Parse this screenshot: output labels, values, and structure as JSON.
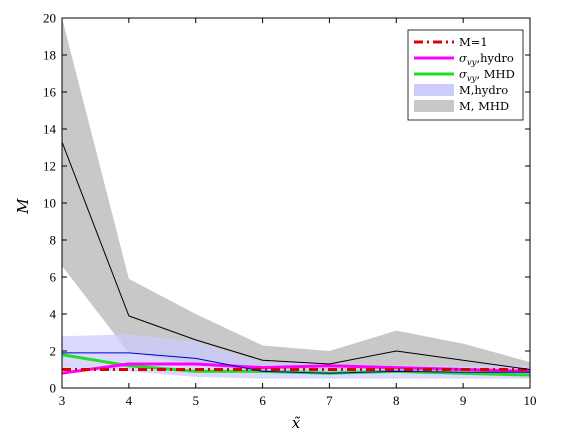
{
  "chart_data": {
    "type": "line",
    "xlabel": "x̃",
    "ylabel": "M",
    "xlim": [
      3,
      10
    ],
    "ylim": [
      0,
      20
    ],
    "xticks": [
      3,
      4,
      5,
      6,
      7,
      8,
      9,
      10
    ],
    "yticks": [
      0,
      2,
      4,
      6,
      8,
      10,
      12,
      14,
      16,
      18,
      20
    ],
    "grid": false,
    "legend_position": "top-right",
    "x": [
      3,
      4,
      5,
      6,
      7,
      8,
      9,
      10
    ],
    "bands": [
      {
        "name": "M, MHD",
        "color": "#c8c8c8",
        "lower": [
          6.6,
          1.9,
          1.3,
          0.9,
          0.8,
          0.8,
          0.7,
          0.6
        ],
        "upper": [
          20.0,
          5.9,
          4.0,
          2.3,
          2.0,
          3.1,
          2.4,
          1.4
        ]
      },
      {
        "name": "M,hydro",
        "color": "#ccccff",
        "lower": [
          1.0,
          0.9,
          0.6,
          0.5,
          0.5,
          0.5,
          0.5,
          0.5
        ],
        "upper": [
          2.8,
          2.9,
          2.5,
          1.4,
          1.3,
          1.2,
          1.2,
          1.2
        ]
      }
    ],
    "series": [
      {
        "name": "M=1",
        "color": "#dd0000",
        "dash": "dashdot",
        "width": 3,
        "values": [
          1,
          1,
          1,
          1,
          1,
          1,
          1,
          1
        ]
      },
      {
        "name": "σ_vy,hydro",
        "color": "#ff00ff",
        "dash": "solid",
        "width": 3,
        "values": [
          0.8,
          1.3,
          1.3,
          1.1,
          1.2,
          1.1,
          1.0,
          0.9
        ]
      },
      {
        "name": "σ_vy, MHD",
        "color": "#22dd22",
        "dash": "solid",
        "width": 3,
        "values": [
          1.8,
          1.2,
          0.9,
          0.9,
          0.8,
          0.9,
          0.8,
          0.7
        ]
      },
      {
        "name": "M,hydro mean",
        "in_legend": false,
        "color": "#0000cc",
        "dash": "solid",
        "width": 1,
        "values": [
          1.9,
          1.9,
          1.6,
          0.9,
          0.8,
          0.9,
          0.85,
          0.85
        ]
      },
      {
        "name": "M, MHD mean",
        "in_legend": false,
        "color": "#000000",
        "dash": "solid",
        "width": 1,
        "values": [
          13.3,
          3.9,
          2.6,
          1.5,
          1.3,
          2.0,
          1.5,
          1.0
        ]
      }
    ],
    "legend": [
      {
        "label_main": "M=1",
        "label_sub": "",
        "label_rest": "",
        "kind": "line",
        "color": "#dd0000",
        "dash": "dashdot"
      },
      {
        "label_main": "σ",
        "label_sub": "vy",
        "label_rest": ",hydro",
        "kind": "line",
        "color": "#ff00ff",
        "dash": "solid"
      },
      {
        "label_main": "σ",
        "label_sub": "vy",
        "label_rest": ", MHD",
        "kind": "line",
        "color": "#22dd22",
        "dash": "solid"
      },
      {
        "label_main": "M,hydro",
        "label_sub": "",
        "label_rest": "",
        "kind": "patch",
        "color": "#ccccff",
        "dash": ""
      },
      {
        "label_main": "M, MHD",
        "label_sub": "",
        "label_rest": "",
        "kind": "patch",
        "color": "#c8c8c8",
        "dash": ""
      }
    ]
  }
}
